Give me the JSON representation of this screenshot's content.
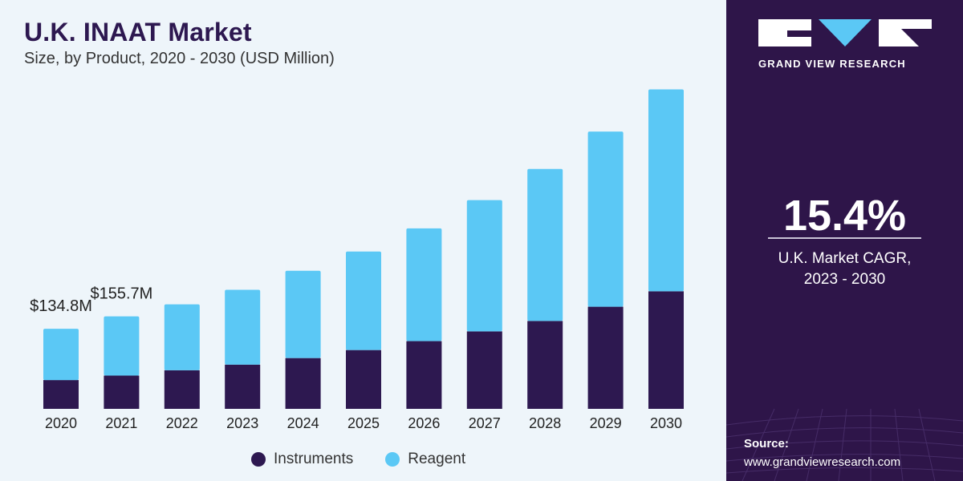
{
  "header": {
    "title": "U.K. INAAT Market",
    "subtitle": "Size, by Product, 2020 - 2030 (USD Million)"
  },
  "chart_data": {
    "type": "bar",
    "stacked": true,
    "categories": [
      "2020",
      "2021",
      "2022",
      "2023",
      "2024",
      "2025",
      "2026",
      "2027",
      "2028",
      "2029",
      "2030"
    ],
    "series": [
      {
        "name": "Instruments",
        "color": "#2d1850",
        "values": [
          48.5,
          56.0,
          65.0,
          74.5,
          85.5,
          99.0,
          114.0,
          130.5,
          148.0,
          172.0,
          198.0
        ]
      },
      {
        "name": "Reagent",
        "color": "#5bc8f5",
        "values": [
          86.3,
          99.7,
          111.0,
          126.0,
          147.0,
          166.0,
          190.0,
          221.0,
          256.0,
          295.0,
          340.0
        ]
      }
    ],
    "data_labels": [
      {
        "category": "2020",
        "text": "$134.8M"
      },
      {
        "category": "2021",
        "text": "$155.7M"
      }
    ],
    "ylim": [
      0,
      540
    ],
    "legend": "bottom",
    "grid": false
  },
  "legend": {
    "instruments": "Instruments",
    "reagent": "Reagent"
  },
  "panel": {
    "logo_text": "GRAND VIEW RESEARCH",
    "cagr_value": "15.4%",
    "cagr_label_line1": "U.K. Market CAGR,",
    "cagr_label_line2": "2023 - 2030",
    "source_label": "Source:",
    "source_url": "www.grandviewresearch.com"
  },
  "colors": {
    "panel_bg": "#2e1549",
    "chart_bg": "#eef5fa",
    "instruments": "#2d1850",
    "reagent": "#5bc8f5"
  }
}
